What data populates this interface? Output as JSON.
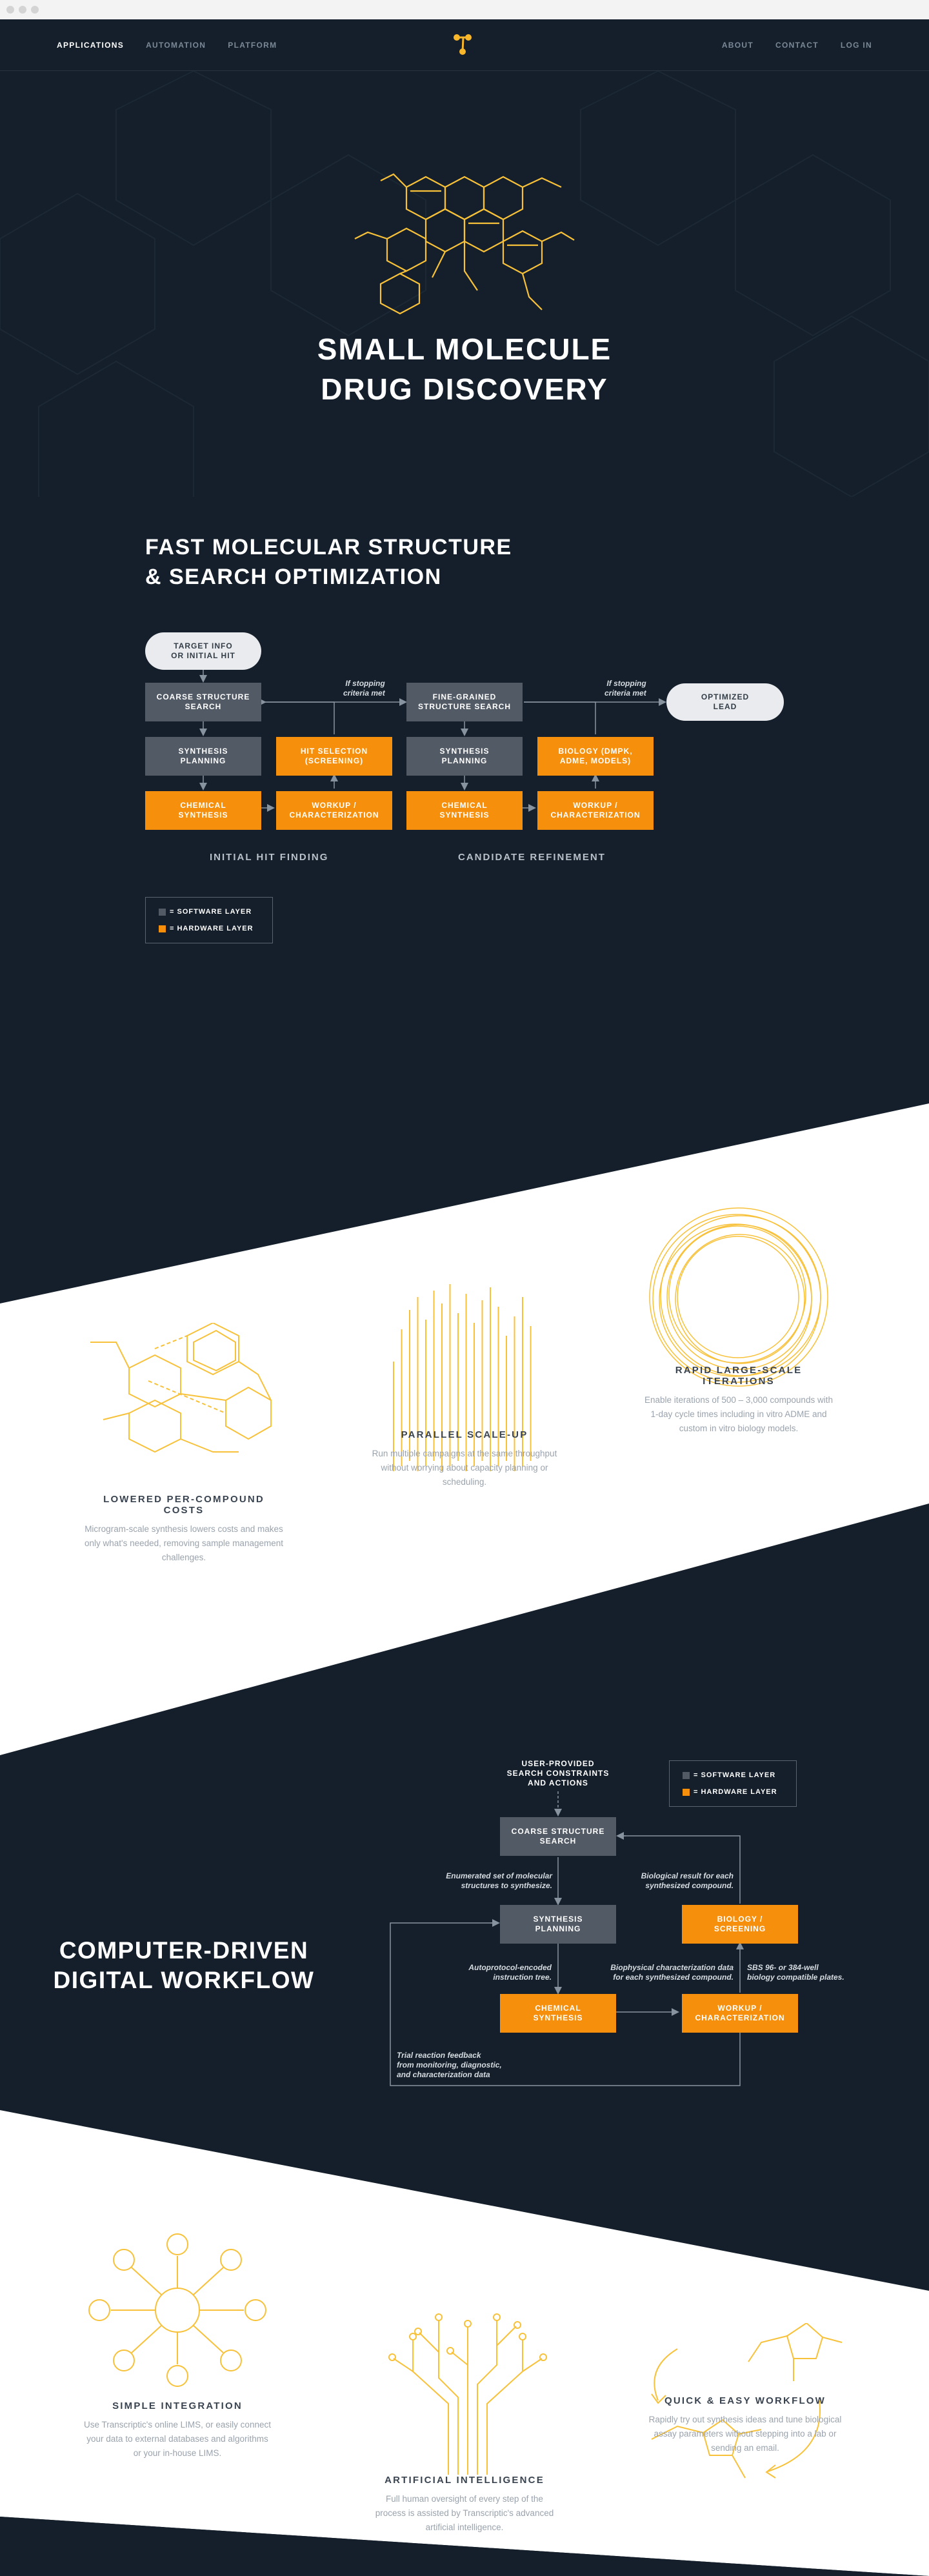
{
  "nav": {
    "left": [
      "APPLICATIONS",
      "AUTOMATION",
      "PLATFORM"
    ],
    "right": [
      "ABOUT",
      "CONTACT",
      "LOG IN"
    ]
  },
  "hero": {
    "title_line1": "SMALL MOLECULE",
    "title_line2": "DRUG DISCOVERY"
  },
  "optimization": {
    "title_line1": "FAST MOLECULAR STRUCTURE",
    "title_line2": "& SEARCH OPTIMIZATION",
    "nodes": {
      "target": "TARGET INFO\nOR INITIAL HIT",
      "coarse": "COARSE STRUCTURE\nSEARCH",
      "synth1": "SYNTHESIS\nPLANNING",
      "hitsel": "HIT SELECTION\n(SCREENING)",
      "chem1": "CHEMICAL\nSYNTHESIS",
      "workup1": "WORKUP /\nCHARACTERIZATION",
      "fine": "FINE-GRAINED\nSTRUCTURE SEARCH",
      "synth2": "SYNTHESIS\nPLANNING",
      "bio": "BIOLOGY (DMPK,\nADME, MODELS)",
      "chem2": "CHEMICAL\nSYNTHESIS",
      "workup2": "WORKUP /\nCHARACTERIZATION",
      "lead": "OPTIMIZED\nLEAD"
    },
    "note": "If stopping\ncriteria met",
    "captions": [
      "INITIAL HIT FINDING",
      "CANDIDATE REFINEMENT"
    ],
    "legend": {
      "software": "= SOFTWARE LAYER",
      "hardware": "= HARDWARE LAYER"
    }
  },
  "features1": [
    {
      "title": "LOWERED PER-COMPOUND COSTS",
      "text": "Microgram-scale synthesis lowers costs and makes only what's needed, removing sample management challenges."
    },
    {
      "title": "PARALLEL SCALE-UP",
      "text": "Run multiple campaigns at the same throughput without worrying about capacity planning or scheduling."
    },
    {
      "title": "RAPID LARGE-SCALE ITERATIONS",
      "text": "Enable iterations of 500 – 3,000 compounds with 1-day cycle times including in vitro ADME and custom in vitro biology models."
    }
  ],
  "workflow": {
    "title_line1": "COMPUTER-DRIVEN",
    "title_line2": "DIGITAL WORKFLOW",
    "top": "USER-PROVIDED\nSEARCH CONSTRAINTS\nAND ACTIONS",
    "coarse": "COARSE STRUCTURE\nSEARCH",
    "synth": "SYNTHESIS\nPLANNING",
    "bio": "BIOLOGY /\nSCREENING",
    "chem": "CHEMICAL\nSYNTHESIS",
    "workup": "WORKUP /\nCHARACTERIZATION",
    "n_enum": "Enumerated set of molecular\nstructures to synthesize.",
    "n_bio": "Biological result for each\nsynthesized compound.",
    "n_auto": "Autoprotocol-encoded\ninstruction tree.",
    "n_biophys": "Biophysical characterization data\nfor each synthesized compound.",
    "n_sbs": "SBS 96- or 384-well\nbiology compatible plates.",
    "n_trial": "Trial reaction feedback\nfrom monitoring, diagnostic,\nand characterization data",
    "legend": {
      "software": "= SOFTWARE LAYER",
      "hardware": "= HARDWARE LAYER"
    }
  },
  "features2": [
    {
      "title": "SIMPLE INTEGRATION",
      "text": "Use Transcriptic's online LIMS, or easily connect your data to external databases and algorithms or your in-house LIMS."
    },
    {
      "title": "ARTIFICIAL INTELLIGENCE",
      "text": "Full human oversight of every step of the process is assisted by Transcriptic's advanced artificial intelligence."
    },
    {
      "title": "QUICK & EASY WORKFLOW",
      "text": "Rapidly try out synthesis ideas and tune biological assay parameters without stepping into a lab or sending an email."
    }
  ],
  "colors": {
    "navy": "#141f2b",
    "orange": "#f6900c",
    "gold": "#f8c13a",
    "software": "#525a66"
  }
}
